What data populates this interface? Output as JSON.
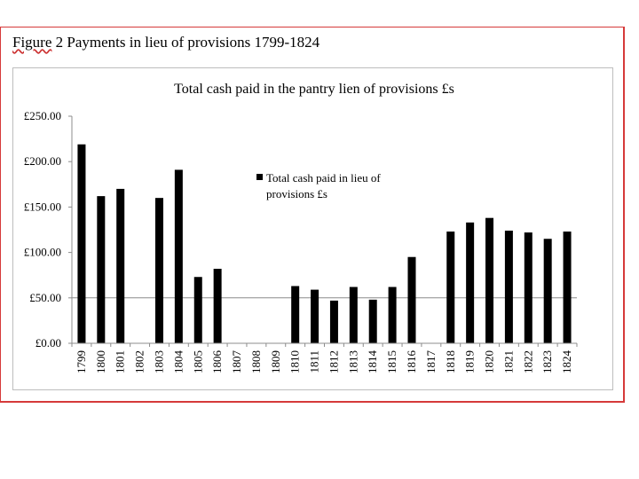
{
  "figure": {
    "title_prefix": "Figure",
    "title_rest": "  2 Payments in lieu of provisions 1799-1824"
  },
  "colors": {
    "bar": "#000000",
    "border": "#d63a3a",
    "chart_border": "#bdbdbd",
    "axis": "#8c8c8c"
  },
  "chart_data": {
    "type": "bar",
    "title": "Total cash paid in the pantry lien of provisions £s",
    "xlabel": "",
    "ylabel": "",
    "ylim": [
      0,
      250
    ],
    "yticks": [
      "£0.00",
      "£50.00",
      "£100.00",
      "£150.00",
      "£200.00",
      "£250.00"
    ],
    "grid": false,
    "legend_position": "center-right",
    "categories": [
      "1799",
      "1800",
      "1801",
      "1802",
      "1803",
      "1804",
      "1805",
      "1806",
      "1807",
      "1808",
      "1809",
      "1810",
      "1811",
      "1812",
      "1813",
      "1814",
      "1815",
      "1816",
      "1817",
      "1818",
      "1819",
      "1820",
      "1821",
      "1822",
      "1823",
      "1824"
    ],
    "series": [
      {
        "name": "Total cash paid in lieu of provisions £s",
        "name_lines": [
          "Total cash paid in lieu of",
          "provisions £s"
        ],
        "values": [
          219,
          162,
          170,
          0,
          160,
          191,
          73,
          82,
          0,
          0,
          0,
          63,
          59,
          47,
          62,
          48,
          62,
          95,
          0,
          123,
          133,
          138,
          124,
          122,
          115,
          123
        ]
      }
    ]
  }
}
